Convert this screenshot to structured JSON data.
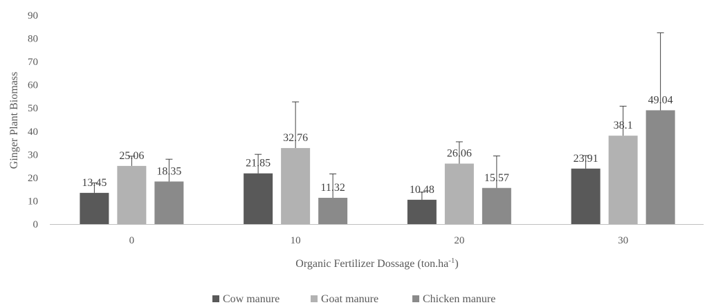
{
  "chart_data": {
    "type": "bar",
    "categories": [
      "0",
      "10",
      "20",
      "30"
    ],
    "series": [
      {
        "name": "Cow manure",
        "color": "#595959",
        "values": [
          13.45,
          21.85,
          10.48,
          23.91
        ],
        "error": [
          4.3,
          8.2,
          3.3,
          5.6
        ]
      },
      {
        "name": "Goat manure",
        "color": "#b2b2b2",
        "values": [
          25.06,
          32.76,
          26.06,
          38.1
        ],
        "error": [
          4.2,
          19.9,
          9.4,
          12.7
        ]
      },
      {
        "name": "Chicken manure",
        "color": "#8a8a8a",
        "values": [
          18.35,
          11.32,
          15.57,
          49.04
        ],
        "error": [
          9.6,
          10.3,
          13.8,
          33.4
        ]
      }
    ],
    "value_labels": [
      [
        "13.45",
        "21.85",
        "10.48",
        "23.91"
      ],
      [
        "25.06",
        "32.76",
        "26.06",
        "38.1"
      ],
      [
        "18.35",
        "11.32",
        "15.57",
        "49.04"
      ]
    ],
    "xlabel": {
      "main": "Organic Fertilizer Dossage (ton.ha",
      "sup": "-1",
      "end": ")"
    },
    "ylabel": "Ginger Plant Biomass",
    "ylim": [
      0,
      90
    ],
    "yticks": [
      "0",
      "10",
      "20",
      "30",
      "40",
      "50",
      "60",
      "70",
      "80",
      "90"
    ],
    "grid": false,
    "legend_position": "bottom"
  }
}
